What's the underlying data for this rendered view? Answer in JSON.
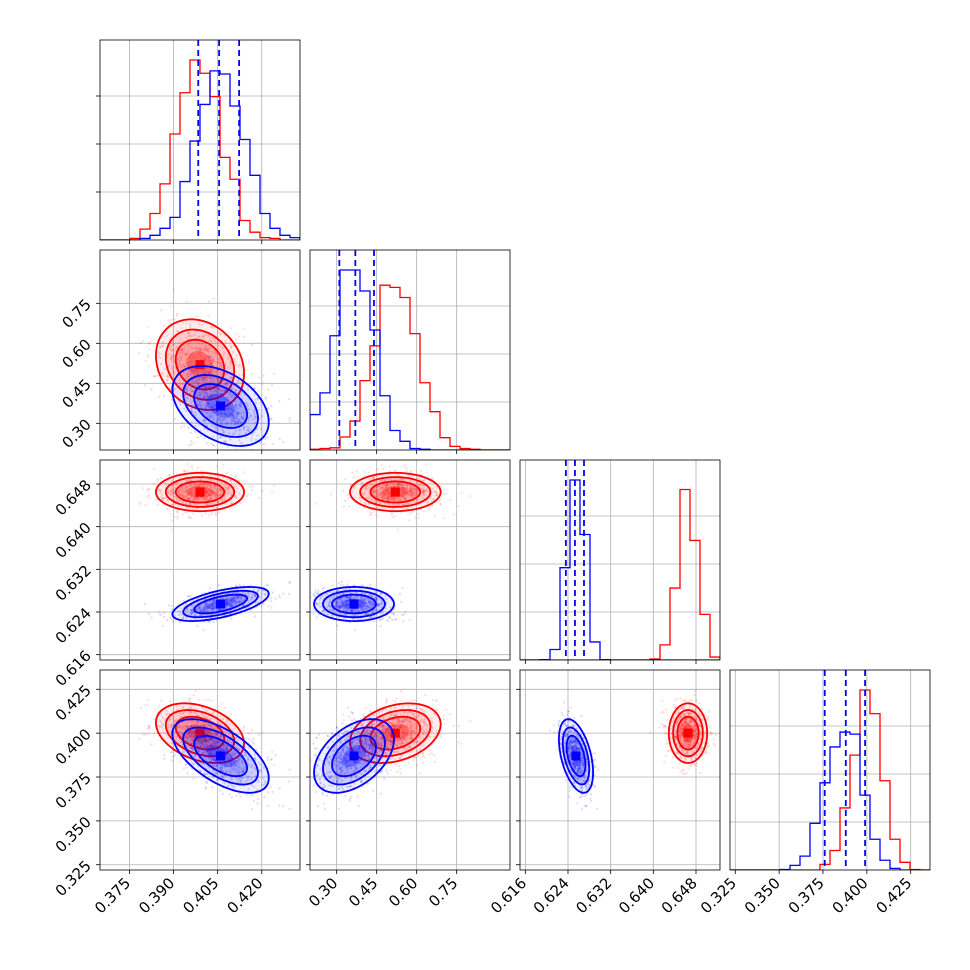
{
  "colors": {
    "red": "#ff0000",
    "blue": "#0000ff",
    "grid": "#b0b0b0"
  },
  "chart_data": {
    "type": "corner",
    "grid": true,
    "parameters": [
      {
        "range": [
          0.365,
          0.433
        ],
        "ticks": [
          "0.375",
          "0.390",
          "0.405",
          "0.420"
        ],
        "tick_values": [
          0.375,
          0.39,
          0.405,
          0.42
        ]
      },
      {
        "range": [
          0.2,
          0.95
        ],
        "ticks": [
          "0.30",
          "0.45",
          "0.60",
          "0.75"
        ],
        "tick_values": [
          0.3,
          0.45,
          0.6,
          0.75
        ]
      },
      {
        "range": [
          0.615,
          0.6525
        ],
        "ticks": [
          "0.616",
          "0.624",
          "0.632",
          "0.640",
          "0.648"
        ],
        "tick_values": [
          0.616,
          0.624,
          0.632,
          0.64,
          0.648
        ]
      },
      {
        "range": [
          0.322,
          0.436
        ],
        "ticks": [
          "0.325",
          "0.350",
          "0.375",
          "0.400",
          "0.425"
        ],
        "tick_values": [
          0.325,
          0.35,
          0.375,
          0.4,
          0.425
        ]
      }
    ],
    "series": [
      {
        "color": "red",
        "means": [
          0.399,
          0.52,
          0.6465,
          0.4
        ],
        "sds": [
          0.0075,
          0.085,
          0.0018,
          0.0085
        ],
        "correlations": {
          "0-1": -0.2,
          "0-3": -0.35,
          "1-3": 0.3
        }
      },
      {
        "color": "blue",
        "means": [
          0.406,
          0.365,
          0.6255,
          0.387
        ],
        "sds": [
          0.0082,
          0.075,
          0.0016,
          0.0105
        ],
        "correlations": {
          "0-1": -0.4,
          "0-2": 0.6,
          "0-3": -0.6,
          "1-3": 0.45,
          "2-3": -0.45
        }
      }
    ],
    "quantile_lines": {
      "color": "blue",
      "values": [
        [
          0.3984,
          0.4055,
          0.4123
        ],
        [
          0.31,
          0.37,
          0.44
        ],
        [
          0.6236,
          0.6253,
          0.627
        ],
        [
          0.376,
          0.388,
          0.399
        ]
      ]
    }
  }
}
